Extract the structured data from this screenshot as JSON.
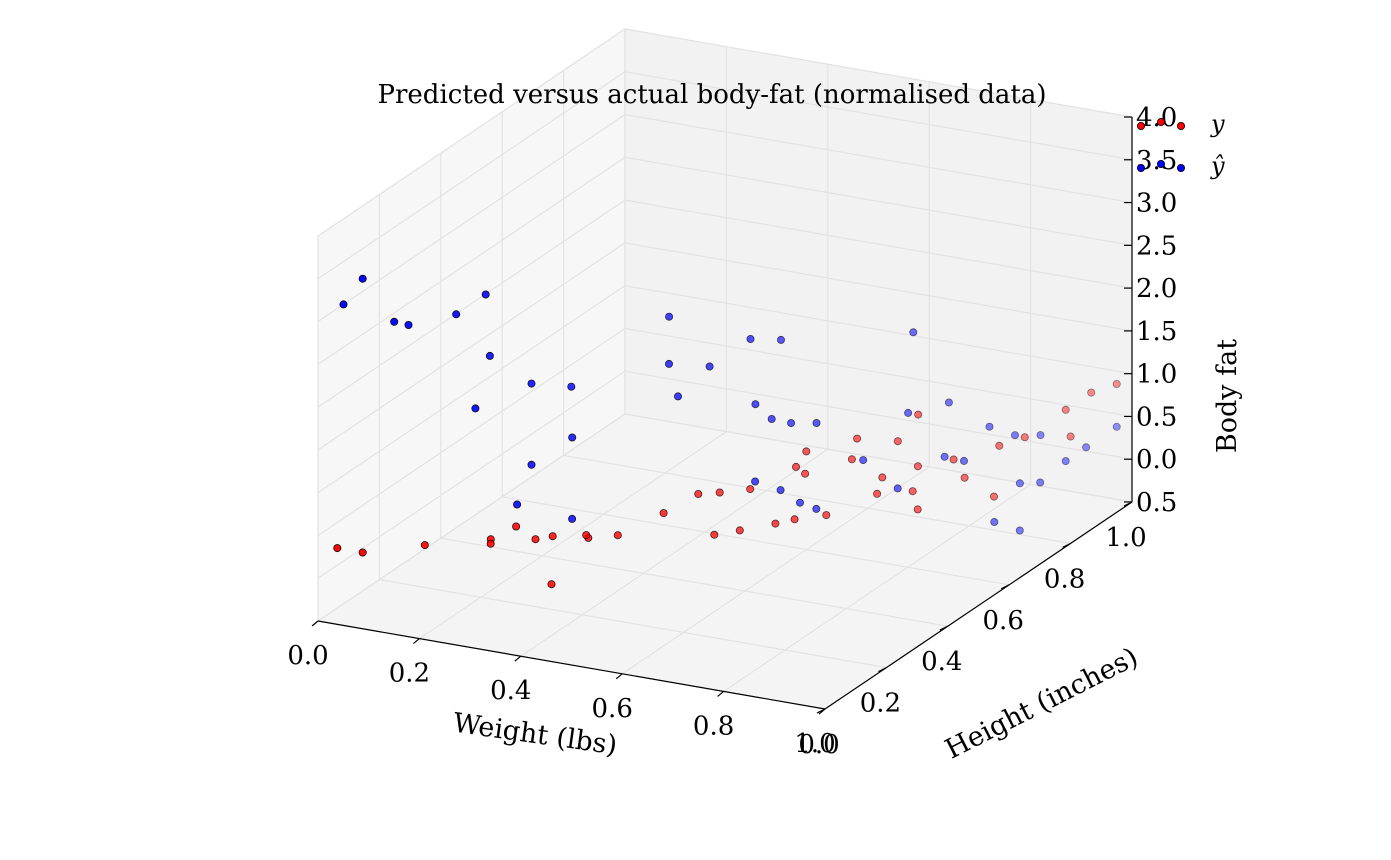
{
  "chart_data": {
    "type": "scatter",
    "projection": "3d",
    "title": "Predicted versus actual body-fat (normalised data)",
    "xlabel": "Weight (lbs)",
    "ylabel": "Height (inches)",
    "zlabel": "Body fat",
    "xlim": [
      0.0,
      1.0
    ],
    "ylim": [
      0.0,
      1.0
    ],
    "zlim": [
      -0.5,
      4.0
    ],
    "xticks": [
      "0.0",
      "0.2",
      "0.4",
      "0.6",
      "0.8",
      "1.0"
    ],
    "yticks": [
      "0.0",
      "0.2",
      "0.4",
      "0.6",
      "0.8",
      "1.0"
    ],
    "zticks": [
      "0.0",
      "0.5",
      "1.0",
      "1.5",
      "2.0",
      "2.5",
      "3.0",
      "3.5",
      "4.0"
    ],
    "zticks_lowest": "0.5",
    "grid": true,
    "legend_position": "top-right",
    "series": [
      {
        "name": "y",
        "color": "#ff0000",
        "points": [
          [
            0.02,
            0.03,
            0.3
          ],
          [
            0.07,
            0.03,
            0.3
          ],
          [
            0.15,
            0.1,
            0.3
          ],
          [
            0.25,
            0.15,
            0.35
          ],
          [
            0.28,
            0.1,
            0.45
          ],
          [
            0.3,
            0.15,
            0.55
          ],
          [
            0.32,
            0.18,
            0.35
          ],
          [
            0.36,
            0.17,
            0.45
          ],
          [
            0.4,
            0.22,
            0.35
          ],
          [
            0.4,
            0.1,
            0.1
          ],
          [
            0.42,
            0.18,
            0.5
          ],
          [
            0.44,
            0.25,
            0.35
          ],
          [
            0.5,
            0.3,
            0.55
          ],
          [
            0.52,
            0.38,
            0.6
          ],
          [
            0.55,
            0.4,
            0.6
          ],
          [
            0.58,
            0.45,
            0.55
          ],
          [
            0.6,
            0.3,
            0.4
          ],
          [
            0.62,
            0.35,
            0.35
          ],
          [
            0.63,
            0.55,
            0.8
          ],
          [
            0.64,
            0.5,
            0.75
          ],
          [
            0.66,
            0.4,
            0.35
          ],
          [
            0.67,
            0.48,
            0.75
          ],
          [
            0.7,
            0.6,
            0.9
          ],
          [
            0.71,
            0.38,
            0.5
          ],
          [
            0.72,
            0.55,
            0.8
          ],
          [
            0.73,
            0.45,
            0.4
          ],
          [
            0.75,
            0.65,
            0.8
          ],
          [
            0.76,
            0.7,
            1.0
          ],
          [
            0.78,
            0.55,
            0.65
          ],
          [
            0.8,
            0.5,
            0.6
          ],
          [
            0.82,
            0.6,
            0.7
          ],
          [
            0.84,
            0.55,
            0.55
          ],
          [
            0.86,
            0.65,
            0.7
          ],
          [
            0.88,
            0.5,
            0.5
          ],
          [
            0.9,
            0.62,
            0.6
          ],
          [
            0.92,
            0.7,
            0.8
          ],
          [
            0.94,
            0.75,
            0.8
          ],
          [
            0.96,
            0.85,
            0.9
          ],
          [
            0.97,
            0.6,
            0.5
          ],
          [
            0.98,
            0.9,
            1.0
          ],
          [
            1.0,
            0.8,
            0.75
          ],
          [
            1.0,
            0.95,
            1.0
          ]
        ]
      },
      {
        "name": "ŷ",
        "color": "#0000ff",
        "points": [
          [
            0.02,
            0.05,
            3.1
          ],
          [
            0.07,
            0.03,
            3.5
          ],
          [
            0.12,
            0.05,
            3.0
          ],
          [
            0.13,
            0.08,
            2.9
          ],
          [
            0.2,
            0.12,
            3.0
          ],
          [
            0.24,
            0.15,
            3.2
          ],
          [
            0.23,
            0.18,
            2.4
          ],
          [
            0.25,
            0.1,
            2.0
          ],
          [
            0.3,
            0.2,
            2.1
          ],
          [
            0.33,
            0.28,
            1.9
          ],
          [
            0.35,
            0.25,
            1.4
          ],
          [
            0.3,
            0.2,
            1.15
          ],
          [
            0.32,
            0.12,
            0.9
          ],
          [
            0.38,
            0.2,
            0.6
          ],
          [
            0.42,
            0.45,
            2.4
          ],
          [
            0.45,
            0.4,
            2.0
          ],
          [
            0.48,
            0.38,
            1.7
          ],
          [
            0.5,
            0.45,
            1.9
          ],
          [
            0.52,
            0.55,
            2.0
          ],
          [
            0.55,
            0.6,
            1.9
          ],
          [
            0.56,
            0.5,
            1.4
          ],
          [
            0.58,
            0.52,
            1.2
          ],
          [
            0.6,
            0.55,
            1.1
          ],
          [
            0.62,
            0.6,
            1.0
          ],
          [
            0.62,
            0.4,
            0.8
          ],
          [
            0.64,
            0.45,
            0.6
          ],
          [
            0.66,
            0.48,
            0.4
          ],
          [
            0.68,
            0.5,
            0.3
          ],
          [
            0.7,
            0.62,
            0.6
          ],
          [
            0.72,
            0.75,
            1.8
          ],
          [
            0.74,
            0.7,
            1.0
          ],
          [
            0.76,
            0.8,
            0.9
          ],
          [
            0.78,
            0.6,
            0.4
          ],
          [
            0.8,
            0.72,
            0.5
          ],
          [
            0.82,
            0.75,
            0.4
          ],
          [
            0.84,
            0.8,
            0.7
          ],
          [
            0.86,
            0.85,
            0.5
          ],
          [
            0.88,
            0.9,
            0.4
          ],
          [
            0.9,
            0.8,
            0.1
          ],
          [
            0.91,
            0.7,
            -0.1
          ],
          [
            0.93,
            0.75,
            -0.3
          ],
          [
            0.94,
            0.8,
            0.15
          ],
          [
            0.96,
            0.85,
            0.3
          ],
          [
            0.97,
            0.9,
            0.35
          ],
          [
            1.0,
            0.95,
            0.5
          ]
        ]
      }
    ]
  }
}
